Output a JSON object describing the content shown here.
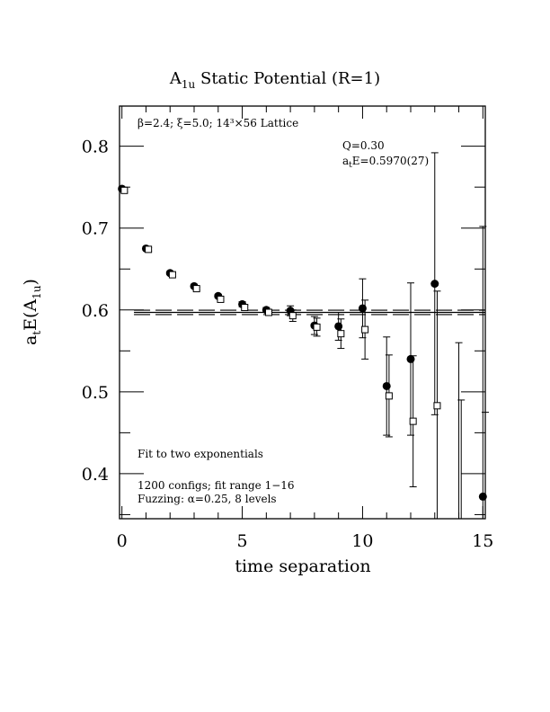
{
  "chart_data": {
    "type": "scatter",
    "title": "A",
    "title_sub": "1u",
    "title_rest": " Static Potential (R=1)",
    "xlabel": "time separation",
    "ylabel_main": "a",
    "ylabel_sub1": "t",
    "ylabel_mid": "E(A",
    "ylabel_sub2": "1u",
    "ylabel_end": ")",
    "xlim": [
      -0.1,
      15.1
    ],
    "ylim": [
      0.345,
      0.849
    ],
    "xticks": [
      "0",
      "5",
      "10",
      "15"
    ],
    "yticks": [
      "0.4",
      "0.5",
      "0.6",
      "0.7",
      "0.8"
    ],
    "grid": false,
    "annotations": {
      "lattice": "β=2.4; ξ=5.0; 14³×56 Lattice",
      "q": "Q=0.30",
      "energy_a": "a",
      "energy_sub": "t",
      "energy_rest": "E=0.5970(27)",
      "fit": "Fit to two exponentials",
      "configs": "1200 configs; fit range 1−16",
      "fuzzing": "Fuzzing: α=0.25, 8 levels"
    },
    "fit": {
      "value": 0.597,
      "error": 0.0027,
      "x_range": [
        0.5,
        15.1
      ]
    },
    "series": [
      {
        "marker": "filled-circle",
        "x": [
          0,
          1,
          2,
          3,
          4,
          5,
          6,
          7,
          8,
          9,
          10,
          11,
          12,
          13,
          14,
          15
        ],
        "y": [
          0.748,
          0.675,
          0.645,
          0.629,
          0.617,
          0.607,
          0.6,
          0.599,
          0.581,
          0.58,
          0.602,
          0.507,
          0.54,
          0.632,
          0.3,
          0.372
        ],
        "err": [
          0.002,
          0.002,
          0.002,
          0.002,
          0.002,
          0.003,
          0.003,
          0.006,
          0.011,
          0.017,
          0.036,
          0.06,
          0.093,
          0.16,
          0.26,
          0.33
        ]
      },
      {
        "marker": "open-square",
        "x": [
          0.1,
          1.1,
          2.1,
          3.1,
          4.1,
          5.1,
          6.1,
          7.1,
          8.1,
          9.1,
          10.1,
          11.1,
          12.1,
          13.1,
          14.1,
          15.1
        ],
        "y": [
          0.746,
          0.674,
          0.643,
          0.626,
          0.613,
          0.603,
          0.597,
          0.593,
          0.579,
          0.571,
          0.576,
          0.495,
          0.464,
          0.483,
          0.3,
          0.3
        ],
        "err": [
          0.002,
          0.002,
          0.002,
          0.002,
          0.002,
          0.003,
          0.003,
          0.007,
          0.011,
          0.018,
          0.036,
          0.05,
          0.08,
          0.14,
          0.19,
          0.175
        ]
      }
    ]
  }
}
